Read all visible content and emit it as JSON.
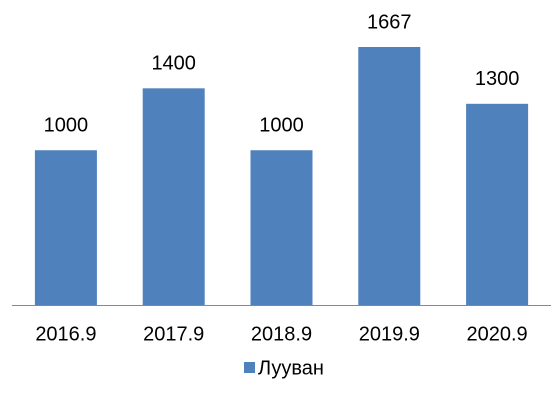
{
  "chart_data": {
    "type": "bar",
    "categories": [
      "2016.9",
      "2017.9",
      "2018.9",
      "2019.9",
      "2020.9"
    ],
    "series": [
      {
        "name": "Лууван",
        "color": "#4f81bd",
        "values": [
          1000,
          1400,
          1000,
          1667,
          1300
        ]
      }
    ],
    "legend": "bottom"
  }
}
